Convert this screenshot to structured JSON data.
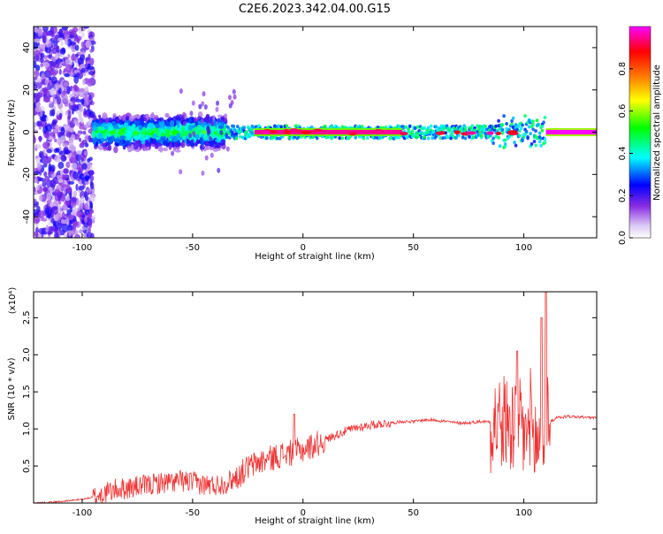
{
  "title": "C2E6.2023.342.04.00.G15",
  "colorbar": {
    "label": "Normalized spectral amplitude",
    "ticks": [
      "0.0",
      "0.2",
      "0.4",
      "0.6",
      "0.8"
    ],
    "tick_values": [
      0.0,
      0.2,
      0.4,
      0.6,
      0.8
    ],
    "range": [
      0,
      1
    ],
    "colors": [
      "#ffffff",
      "#d9c6f5",
      "#8a2be2",
      "#0000ff",
      "#00ffff",
      "#00ff00",
      "#ffff00",
      "#ff7f00",
      "#ff0000",
      "#ff00ff"
    ]
  },
  "chart_data": [
    {
      "type": "heatmap",
      "title": "",
      "xlabel": "Height of straight line (km)",
      "ylabel": "Frequency (Hz)",
      "xlim": [
        -122,
        133
      ],
      "ylim": [
        -50,
        50
      ],
      "xticks": [
        -100,
        -50,
        0,
        50,
        100
      ],
      "xtick_labels": [
        "-100",
        "-50",
        "0",
        "50",
        "100"
      ],
      "yticks": [
        -40,
        -20,
        0,
        20,
        40
      ],
      "ytick_labels": [
        "-40",
        "-20",
        "0",
        "20",
        "40"
      ],
      "grid": false,
      "band": {
        "center_hz": 0,
        "segments": [
          {
            "x": [
              -122,
              -95
            ],
            "description": "broadband purple noise",
            "half_width_hz": 50,
            "amplitude": 0.1
          },
          {
            "x": [
              -95,
              -35
            ],
            "description": "noisy band",
            "half_width_hz": 9,
            "amplitude": 0.3
          },
          {
            "x": [
              -35,
              110
            ],
            "description": "narrow band",
            "half_width_hz": 3,
            "amplitude": 0.45
          },
          {
            "x": [
              -22,
              45
            ],
            "description": "strong core",
            "half_width_hz": 1.5,
            "amplitude": 0.95
          },
          {
            "x": [
              110,
              133
            ],
            "description": "strong core",
            "half_width_hz": 1.5,
            "amplitude": 1.0
          }
        ]
      }
    },
    {
      "type": "line",
      "title": "",
      "xlabel": "Height of straight line (km)",
      "ylabel": "SNR (10 * v/v)",
      "y_multiplier": "(x10⁴)",
      "xlim": [
        -122,
        133
      ],
      "ylim": [
        0,
        2.85
      ],
      "xticks": [
        -100,
        -50,
        0,
        50,
        100
      ],
      "xtick_labels": [
        "-100",
        "-50",
        "0",
        "50",
        "100"
      ],
      "yticks": [
        0.5,
        1.0,
        1.5,
        2.0,
        2.5
      ],
      "ytick_labels": [
        "0.5",
        "1.0",
        "1.5",
        "2.0",
        "2.5"
      ],
      "color": "#ee3333",
      "grid": false,
      "series": [
        {
          "x": [
            -122,
            -110,
            -100,
            -95,
            -90,
            -85,
            -80,
            -75,
            -70,
            -65,
            -60,
            -55,
            -50,
            -45,
            -40,
            -35,
            -30,
            -25,
            -20,
            -15,
            -10,
            -5,
            0,
            5,
            10,
            15,
            20,
            25,
            30,
            35,
            40,
            45,
            50,
            55,
            60,
            65,
            70,
            75,
            80,
            85,
            90,
            95,
            100,
            103,
            106,
            108,
            110,
            112,
            115,
            120,
            125,
            133
          ],
          "values": [
            0.0,
            0.02,
            0.05,
            0.08,
            0.13,
            0.18,
            0.2,
            0.22,
            0.24,
            0.27,
            0.28,
            0.3,
            0.28,
            0.25,
            0.24,
            0.27,
            0.35,
            0.48,
            0.55,
            0.6,
            0.65,
            0.68,
            0.72,
            0.78,
            0.85,
            0.92,
            0.98,
            1.02,
            1.05,
            1.07,
            1.08,
            1.1,
            1.1,
            1.12,
            1.12,
            1.1,
            1.08,
            1.08,
            1.1,
            1.1,
            1.08,
            1.05,
            0.95,
            0.9,
            0.8,
            0.85,
            1.0,
            1.1,
            1.15,
            1.17,
            1.16,
            1.15
          ]
        }
      ]
    }
  ]
}
